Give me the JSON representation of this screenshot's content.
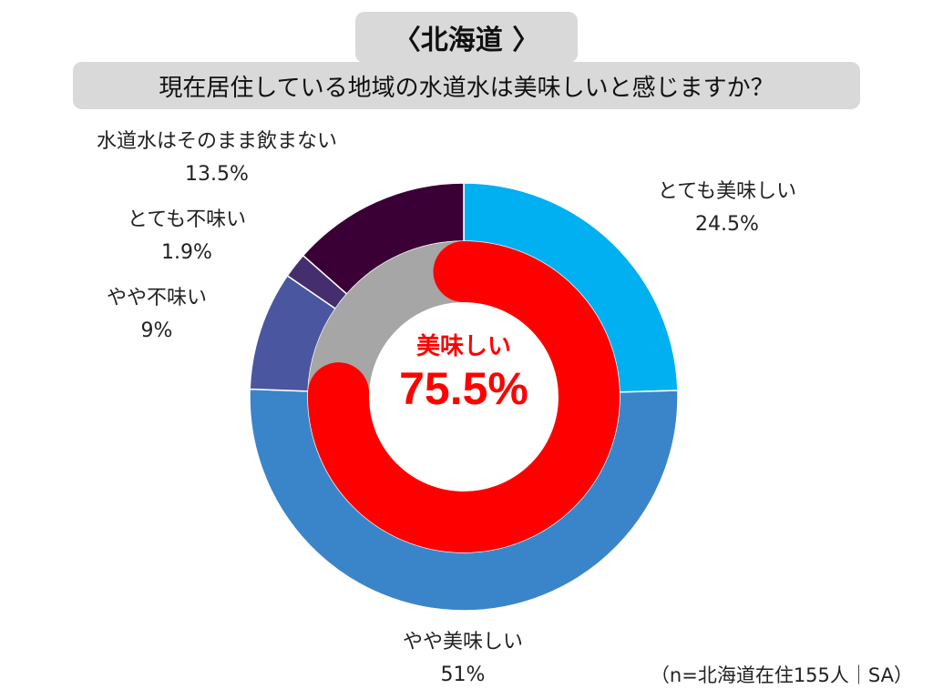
{
  "header": {
    "title": "〈北海道 〉",
    "question": "現在居住している地域の水道水は美味しいと感じますか？"
  },
  "chart_data": {
    "type": "donut",
    "outer_ring": [
      {
        "name": "とても美味しい",
        "value": 24.5,
        "label": "24.5%",
        "color": "#00b0f0"
      },
      {
        "name": "やや美味しい",
        "value": 51,
        "label": "51%",
        "color": "#3a85c9"
      },
      {
        "name": "やや不味い",
        "value": 9,
        "label": "9%",
        "color": "#4a56a0"
      },
      {
        "name": "とても不味い",
        "value": 1.9,
        "label": "1.9%",
        "color": "#452e6e"
      },
      {
        "name": "水道水はそのまま飲まない",
        "value": 13.5,
        "label": "13.5%",
        "color": "#3a0035"
      }
    ],
    "inner_ring": {
      "highlight_value": 75.5,
      "highlight_color": "#ff0000",
      "track_color": "#a6a6a6",
      "label": "美味しい",
      "value_label": "75.5%"
    }
  },
  "footnote": "（n=北海道在住155人｜SA）"
}
